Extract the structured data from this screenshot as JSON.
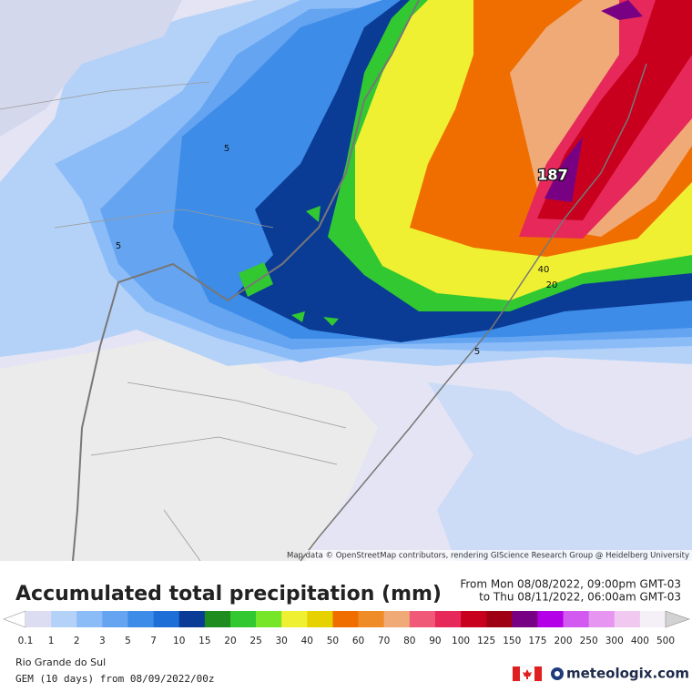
{
  "map": {
    "labels": [
      187,
      40,
      20,
      5,
      5,
      5
    ],
    "attribution": "Map data © OpenStreetMap contributors, rendering GIScience Research Group @ Heidelberg University"
  },
  "title": "Accumulated total precipitation (mm)",
  "period": [
    "From Mon 08/08/2022, 09:00pm GMT-03",
    "to Thu 08/11/2022, 06:00am GMT-03"
  ],
  "legend": {
    "ticks": [
      0.1,
      1,
      2,
      3,
      5,
      7,
      10,
      15,
      20,
      25,
      30,
      40,
      50,
      60,
      70,
      80,
      90,
      100,
      125,
      150,
      175,
      200,
      250,
      300,
      400,
      500
    ],
    "colors": [
      "#ffffff",
      "#dcdcf2",
      "#b4d2f8",
      "#8cbcf8",
      "#64a4f0",
      "#3c8ce8",
      "#1e6ed8",
      "#0a3c96",
      "#1e8c1e",
      "#32c832",
      "#78e628",
      "#f0f032",
      "#e6d200",
      "#f06e00",
      "#f08c28",
      "#f0aa78",
      "#f05a78",
      "#e6285a",
      "#c8001e",
      "#a00014",
      "#780082",
      "#b400e6",
      "#d25af0",
      "#e696f0",
      "#f0c8f0",
      "#f5f0f8",
      "#d2d2d2"
    ]
  },
  "region": "Rio Grande do Sul",
  "model": "GEM (10 days) from 08/09/2022/00z",
  "brand": "meteologix.com"
}
